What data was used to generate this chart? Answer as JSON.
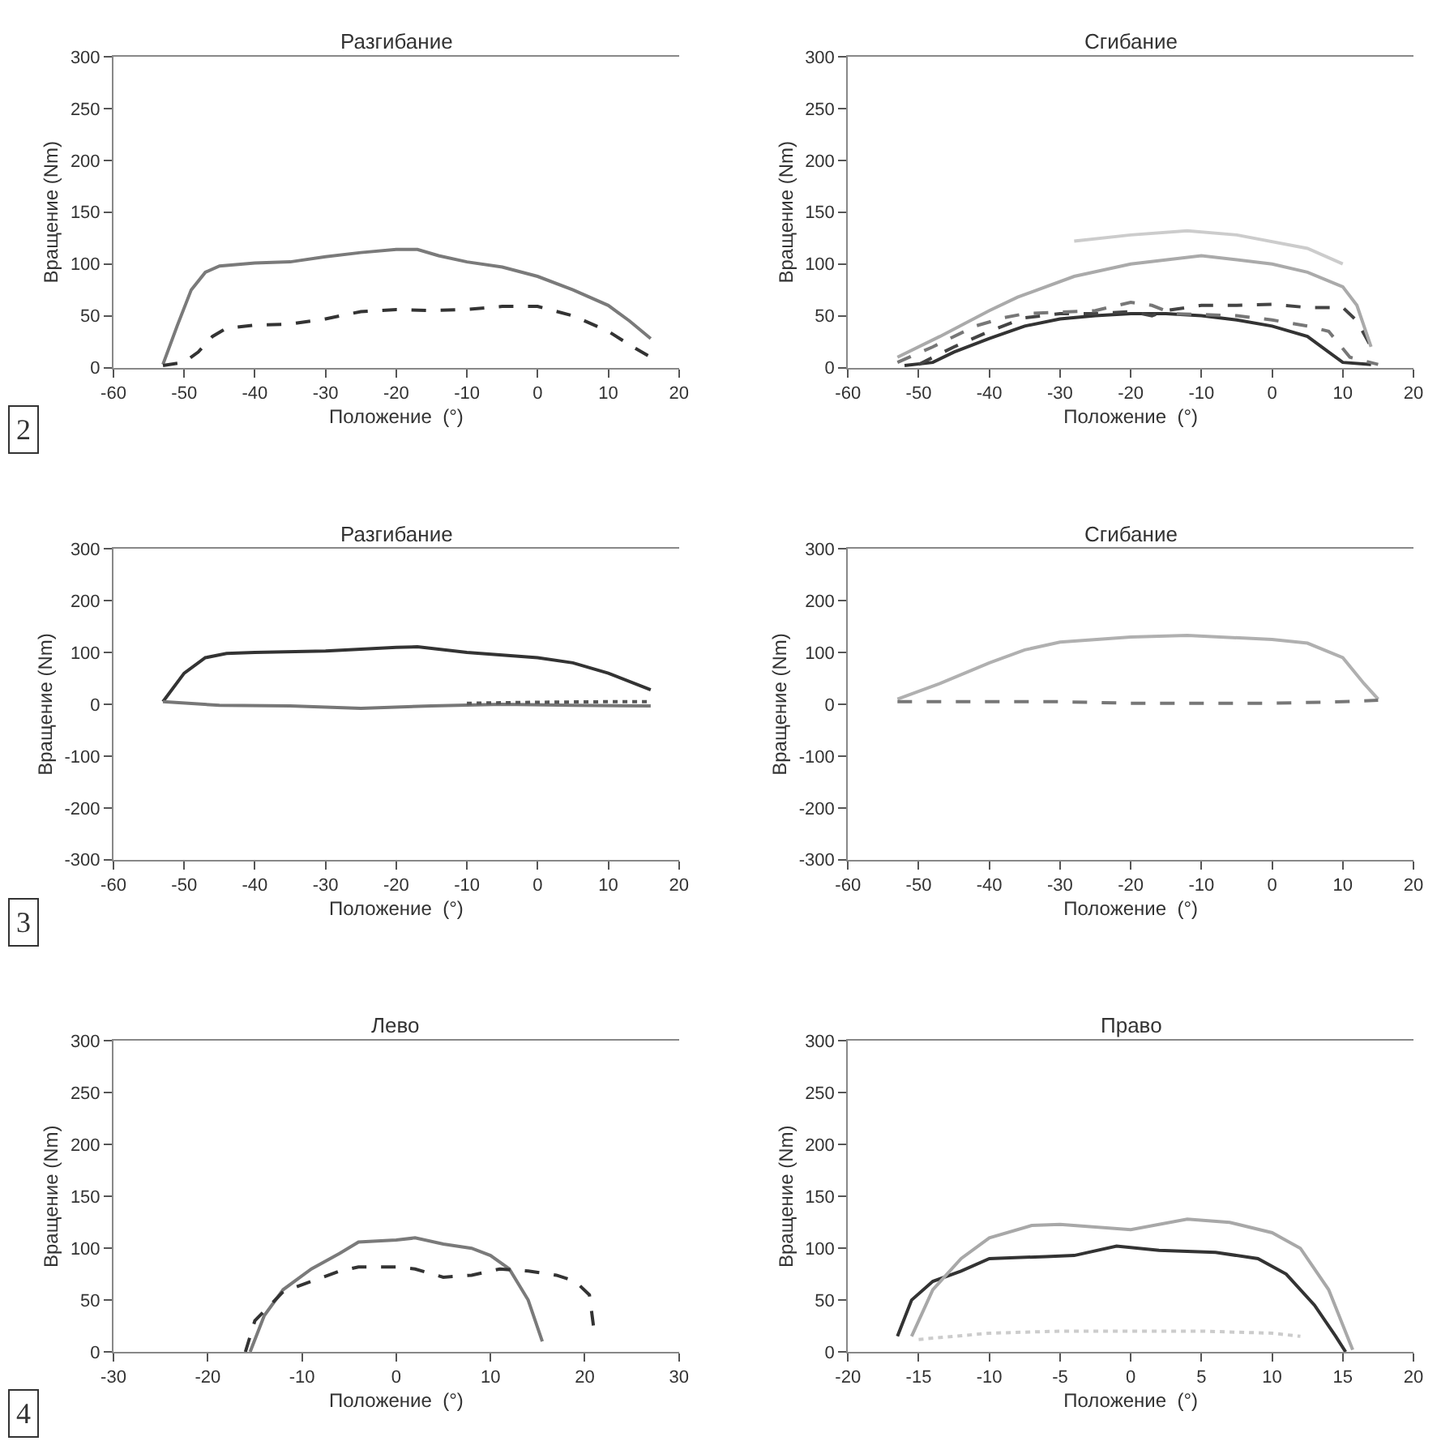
{
  "chart_data": [
    {
      "type": "line",
      "title": "Разгибание",
      "xlabel": "Положение  (°)",
      "ylabel": "Вращение (Nm)",
      "annotations": [
        "2"
      ],
      "xlim": [
        -60,
        20
      ],
      "xticks": [
        -60,
        -50,
        -40,
        -30,
        -20,
        -10,
        0,
        10,
        20
      ],
      "ylim": [
        0,
        300
      ],
      "yticks": [
        0,
        50,
        100,
        150,
        200,
        250,
        300
      ],
      "series": [
        {
          "color": "#7a7a7a",
          "x": [
            -53,
            -51,
            -49,
            -47,
            -45,
            -40,
            -35,
            -30,
            -25,
            -20,
            -17,
            -14,
            -10,
            -5,
            0,
            5,
            10,
            13,
            16
          ],
          "values": [
            3,
            40,
            75,
            92,
            98,
            101,
            102,
            107,
            111,
            114,
            114,
            108,
            102,
            97,
            88,
            75,
            60,
            45,
            28
          ]
        },
        {
          "color": "#333333",
          "line_style": "dashed",
          "x": [
            -53,
            -50,
            -48,
            -46,
            -44,
            -40,
            -35,
            -30,
            -25,
            -20,
            -15,
            -10,
            -5,
            0,
            5,
            10,
            13,
            16
          ],
          "values": [
            2,
            5,
            15,
            30,
            38,
            41,
            42,
            47,
            54,
            56,
            55,
            56,
            59,
            59,
            50,
            35,
            22,
            10
          ]
        }
      ]
    },
    {
      "type": "line",
      "title": "Сгибание",
      "xlabel": "Положение  (°)",
      "ylabel": "Вращение (Nm)",
      "xlim": [
        -60,
        20
      ],
      "xticks": [
        -60,
        -50,
        -40,
        -30,
        -20,
        -10,
        0,
        10,
        20
      ],
      "ylim": [
        0,
        300
      ],
      "yticks": [
        0,
        50,
        100,
        150,
        200,
        250,
        300
      ],
      "series": [
        {
          "color": "#333333",
          "x": [
            -52,
            -48,
            -45,
            -40,
            -35,
            -30,
            -25,
            -20,
            -15,
            -10,
            -5,
            0,
            5,
            8,
            10,
            14
          ],
          "values": [
            2,
            5,
            15,
            28,
            40,
            47,
            50,
            52,
            52,
            50,
            46,
            40,
            30,
            15,
            5,
            3
          ]
        },
        {
          "color": "#444444",
          "line_style": "dashed",
          "x": [
            -50,
            -45,
            -40,
            -35,
            -30,
            -25,
            -20,
            -17,
            -15,
            -10,
            -5,
            0,
            5,
            10,
            12,
            14
          ],
          "values": [
            3,
            20,
            35,
            48,
            52,
            52,
            54,
            50,
            55,
            60,
            60,
            61,
            58,
            58,
            45,
            20
          ]
        },
        {
          "color": "#777777",
          "line_style": "dashed",
          "x": [
            -53,
            -48,
            -42,
            -38,
            -35,
            -25,
            -20,
            -17,
            -14,
            -5,
            0,
            5,
            8,
            11,
            15
          ],
          "values": [
            5,
            20,
            40,
            48,
            52,
            55,
            63,
            60,
            52,
            50,
            46,
            40,
            35,
            10,
            3
          ]
        },
        {
          "color": "#aaaaaa",
          "x": [
            -53,
            -47,
            -40,
            -36,
            -28,
            -20,
            -10,
            0,
            5,
            10,
            12,
            14
          ],
          "values": [
            10,
            30,
            55,
            68,
            88,
            100,
            108,
            100,
            92,
            78,
            60,
            20
          ]
        },
        {
          "color": "#cccccc",
          "x": [
            -28,
            -20,
            -12,
            -5,
            5,
            10
          ],
          "values": [
            122,
            128,
            132,
            128,
            115,
            100
          ]
        }
      ]
    },
    {
      "type": "line",
      "title": "Разгибание",
      "xlabel": "Положение  (°)",
      "ylabel": "Вращение (Nm)",
      "annotations": [
        "3"
      ],
      "xlim": [
        -60,
        20
      ],
      "xticks": [
        -60,
        -50,
        -40,
        -30,
        -20,
        -10,
        0,
        10,
        20
      ],
      "ylim": [
        -300,
        300
      ],
      "yticks": [
        -300,
        -200,
        -100,
        0,
        100,
        200,
        300
      ],
      "series": [
        {
          "color": "#333333",
          "x": [
            -53,
            -50,
            -47,
            -44,
            -40,
            -30,
            -20,
            -17,
            -10,
            0,
            5,
            10,
            16
          ],
          "values": [
            5,
            60,
            90,
            98,
            100,
            103,
            110,
            111,
            100,
            90,
            80,
            60,
            28
          ]
        },
        {
          "color": "#777777",
          "x": [
            -53,
            -45,
            -35,
            -25,
            -15,
            -5,
            5,
            16
          ],
          "values": [
            5,
            -2,
            -3,
            -8,
            -3,
            0,
            -2,
            -3
          ]
        },
        {
          "color": "#555555",
          "line_style": "dotted",
          "x": [
            -10,
            0,
            10,
            16
          ],
          "values": [
            2,
            4,
            5,
            5
          ]
        }
      ]
    },
    {
      "type": "line",
      "title": "Сгибание",
      "xlabel": "Положение  (°)",
      "ylabel": "Вращение (Nm)",
      "xlim": [
        -60,
        20
      ],
      "xticks": [
        -60,
        -50,
        -40,
        -30,
        -20,
        -10,
        0,
        10,
        20
      ],
      "ylim": [
        -300,
        300
      ],
      "yticks": [
        -300,
        -200,
        -100,
        0,
        100,
        200,
        300
      ],
      "series": [
        {
          "color": "#b0b0b0",
          "x": [
            -53,
            -47,
            -40,
            -35,
            -30,
            -20,
            -12,
            0,
            5,
            10,
            13,
            15
          ],
          "values": [
            10,
            40,
            80,
            105,
            120,
            130,
            133,
            125,
            118,
            90,
            40,
            10
          ]
        },
        {
          "color": "#777777",
          "line_style": "dashed",
          "x": [
            -53,
            -30,
            -20,
            0,
            10,
            15
          ],
          "values": [
            5,
            5,
            2,
            2,
            5,
            8
          ]
        }
      ]
    },
    {
      "type": "line",
      "title": "Лево",
      "xlabel": "Положение  (°)",
      "ylabel": "Вращение (Nm)",
      "annotations": [
        "4"
      ],
      "xlim": [
        -30,
        30
      ],
      "xticks": [
        -30,
        -20,
        -10,
        0,
        10,
        20,
        30
      ],
      "ylim": [
        0,
        300
      ],
      "yticks": [
        0,
        50,
        100,
        150,
        200,
        250,
        300
      ],
      "series": [
        {
          "color": "#7a7a7a",
          "x": [
            -15.5,
            -14,
            -12,
            -9,
            -6,
            -4,
            0,
            2,
            5,
            8,
            10,
            12,
            14,
            15.5
          ],
          "values": [
            0,
            35,
            60,
            80,
            95,
            106,
            108,
            110,
            104,
            100,
            93,
            80,
            50,
            10
          ]
        },
        {
          "color": "#333333",
          "line_style": "dashed",
          "x": [
            -16,
            -15,
            -12,
            -9,
            -6,
            -4,
            0,
            2,
            5,
            8,
            11,
            14,
            17,
            19,
            20.5,
            21
          ],
          "values": [
            0,
            30,
            58,
            68,
            78,
            82,
            82,
            80,
            72,
            74,
            80,
            78,
            74,
            68,
            55,
            20
          ]
        }
      ]
    },
    {
      "type": "line",
      "title": "Право",
      "xlabel": "Положение  (°)",
      "ylabel": "Вращение (Nm)",
      "xlim": [
        -20,
        20
      ],
      "xticks": [
        -20,
        -15,
        -10,
        -5,
        0,
        5,
        10,
        15,
        20
      ],
      "ylim": [
        0,
        300
      ],
      "yticks": [
        0,
        50,
        100,
        150,
        200,
        250,
        300
      ],
      "series": [
        {
          "color": "#333333",
          "x": [
            -16.5,
            -15.5,
            -14,
            -12,
            -10,
            -6,
            -4,
            -1,
            2,
            6,
            9,
            11,
            13,
            14.5,
            15.2
          ],
          "values": [
            15,
            50,
            68,
            78,
            90,
            92,
            93,
            102,
            98,
            96,
            90,
            75,
            45,
            15,
            0
          ]
        },
        {
          "color": "#a8a8a8",
          "x": [
            -15.5,
            -14,
            -12,
            -10,
            -7,
            -5,
            0,
            4,
            7,
            10,
            12,
            14,
            15.7
          ],
          "values": [
            15,
            60,
            90,
            110,
            122,
            123,
            118,
            128,
            125,
            115,
            100,
            60,
            2
          ]
        },
        {
          "color": "#cccccc",
          "line_style": "dotted",
          "x": [
            -15,
            -10,
            -5,
            0,
            5,
            10,
            12
          ],
          "values": [
            12,
            18,
            20,
            20,
            20,
            18,
            15
          ]
        }
      ]
    }
  ]
}
